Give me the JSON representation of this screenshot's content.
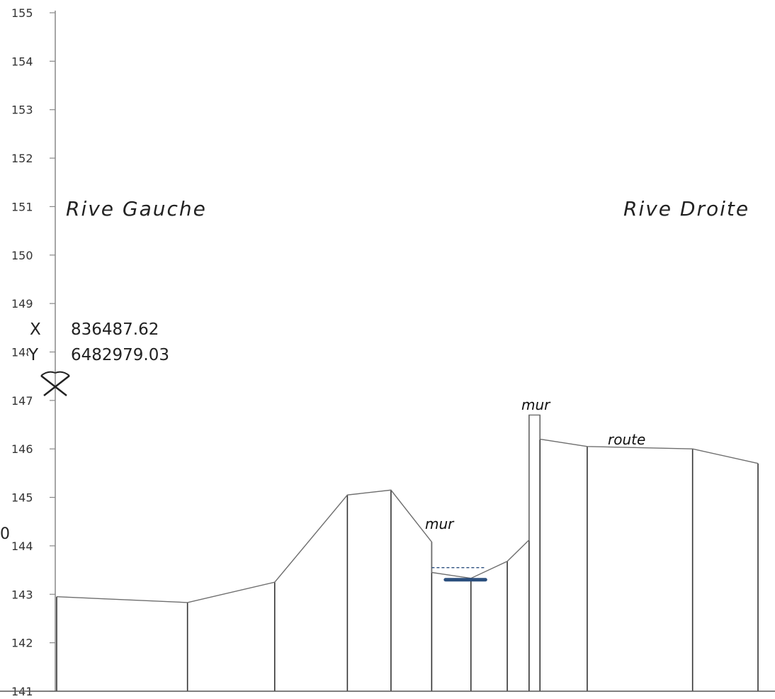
{
  "chart_data": {
    "type": "line",
    "title": "",
    "xlabel": "",
    "ylabel": "",
    "ylim": [
      141,
      155
    ],
    "yticks": [
      141,
      142,
      143,
      144,
      145,
      146,
      147,
      148,
      149,
      150,
      151,
      152,
      153,
      154,
      155
    ],
    "x_unit": "m",
    "profile": [
      {
        "x": 0.0,
        "y": 142.95
      },
      {
        "x": 1.8,
        "y": 142.83
      },
      {
        "x": 3.0,
        "y": 143.25
      },
      {
        "x": 4.0,
        "y": 145.05
      },
      {
        "x": 4.6,
        "y": 145.15
      },
      {
        "x": 5.16,
        "y": 144.08
      },
      {
        "x": 5.16,
        "y": 143.45
      },
      {
        "x": 5.7,
        "y": 143.33
      },
      {
        "x": 6.2,
        "y": 143.68
      },
      {
        "x": 6.5,
        "y": 144.12
      },
      {
        "x": 6.5,
        "y": 146.7
      },
      {
        "x": 6.65,
        "y": 146.7
      },
      {
        "x": 6.65,
        "y": 146.2
      },
      {
        "x": 7.3,
        "y": 146.05
      },
      {
        "x": 8.75,
        "y": 146.0
      },
      {
        "x": 9.65,
        "y": 145.7
      }
    ],
    "verticals_x": [
      0.0,
      1.8,
      3.0,
      4.0,
      4.6,
      5.16,
      5.7,
      6.2,
      6.5,
      6.65,
      7.3,
      8.75,
      9.65
    ],
    "water_level": {
      "y": 143.55,
      "x_start": 5.16,
      "x_end": 5.9
    },
    "bed_marker": {
      "y": 143.3,
      "x_start": 5.35,
      "x_end": 5.9
    },
    "annotations": {
      "left_bank": "Rive Gauche",
      "right_bank": "Rive Droite",
      "mur_left": "mur",
      "mur_right": "mur",
      "route": "route"
    }
  },
  "coordinates": {
    "x_label": "X",
    "x_value": "836487.62",
    "y_label": "Y",
    "y_value": "6482979.03"
  },
  "stray_text": "0",
  "colors": {
    "line": "#6e6e6e",
    "vertical": "#333333",
    "water": "#2b4f7e",
    "bed": "#2b4f7e",
    "axis": "#888888"
  },
  "icons": [
    "pick-axe-icon"
  ]
}
